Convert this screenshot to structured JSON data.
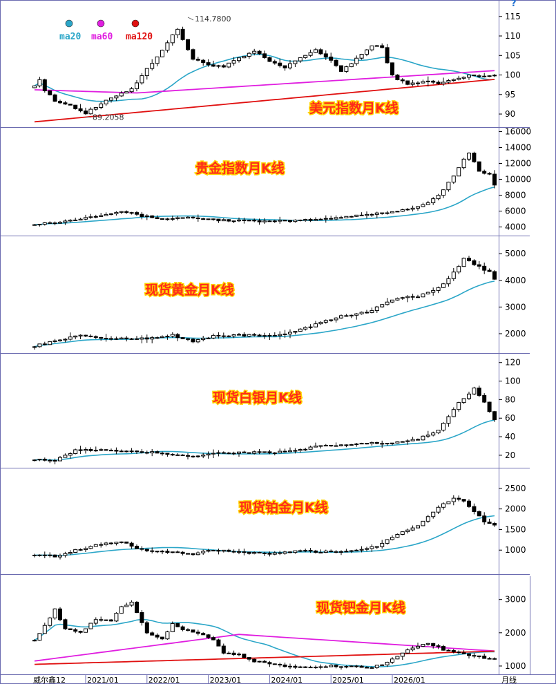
{
  "app": {
    "title": "威尔鑫12",
    "period_label": "月线",
    "help_icon": "?"
  },
  "legend": [
    {
      "name": "ma20",
      "color": "#2ba6c8"
    },
    {
      "name": "ma60",
      "color": "#e01fe0"
    },
    {
      "name": "ma120",
      "color": "#e01010"
    }
  ],
  "x_axis": {
    "labels": [
      "2021/01",
      "2022/01",
      "2023/01",
      "2024/01",
      "2025/01",
      "2026/01"
    ],
    "start": "2020/03",
    "end": "2026/03"
  },
  "chart_data": [
    {
      "type": "candlestick",
      "title": "美元指数月K线",
      "yticks": [
        90,
        95,
        100,
        105,
        110,
        115
      ],
      "ylim": [
        87,
        118.5
      ],
      "annotations": [
        {
          "text": "114.7800",
          "x": "2022/09",
          "y": 114.78
        },
        {
          "text": "89.2058",
          "x": "2021/01",
          "y": 89.2058
        }
      ],
      "ma": [
        "ma20",
        "ma60",
        "ma120"
      ],
      "series": {
        "anchors": [
          [
            0,
            97.5
          ],
          [
            1,
            98.9
          ],
          [
            2,
            96
          ],
          [
            4,
            93.3
          ],
          [
            6,
            92.8
          ],
          [
            10,
            90.2
          ],
          [
            13,
            92.5
          ],
          [
            16,
            94.8
          ],
          [
            19,
            96.5
          ],
          [
            22,
            101.5
          ],
          [
            25,
            106.5
          ],
          [
            28,
            111.8
          ],
          [
            31,
            104
          ],
          [
            34,
            102.7
          ],
          [
            37,
            102.1
          ],
          [
            40,
            104.2
          ],
          [
            43,
            106
          ],
          [
            46,
            103.5
          ],
          [
            49,
            101.8
          ],
          [
            52,
            104.5
          ],
          [
            55,
            106.5
          ],
          [
            58,
            103.5
          ],
          [
            60,
            101
          ],
          [
            63,
            104.2
          ],
          [
            66,
            107.5
          ],
          [
            68,
            107
          ],
          [
            70,
            99.8
          ],
          [
            73,
            97.5
          ],
          [
            76,
            98.5
          ],
          [
            79,
            97.8
          ],
          [
            82,
            98.8
          ],
          [
            85,
            99.8
          ]
        ]
      }
    },
    {
      "type": "candlestick",
      "title": "贵金指数月K线",
      "yticks": [
        4000,
        6000,
        8000,
        10000,
        12000,
        14000,
        16000
      ],
      "ylim": [
        3000,
        16300
      ],
      "ma": [
        "ma20"
      ],
      "series": {
        "anchors": [
          [
            0,
            4400
          ],
          [
            5,
            4600
          ],
          [
            10,
            5200
          ],
          [
            17,
            6000
          ],
          [
            21,
            5400
          ],
          [
            25,
            5000
          ],
          [
            30,
            5200
          ],
          [
            35,
            4900
          ],
          [
            45,
            4700
          ],
          [
            50,
            4750
          ],
          [
            57,
            5000
          ],
          [
            62,
            5400
          ],
          [
            67,
            5700
          ],
          [
            72,
            6100
          ],
          [
            77,
            7000
          ],
          [
            80,
            8600
          ],
          [
            82,
            10500
          ],
          [
            84,
            12500
          ],
          [
            85,
            13200
          ],
          [
            87,
            11000
          ],
          [
            89,
            10600
          ],
          [
            90,
            9300
          ]
        ]
      }
    },
    {
      "type": "candlestick",
      "title": "现货黄金月K线",
      "yticks": [
        2000,
        3000,
        4000,
        5000
      ],
      "ylim": [
        1300,
        5600
      ],
      "ma": [
        "ma20"
      ],
      "series": {
        "anchors": [
          [
            0,
            1550
          ],
          [
            5,
            1750
          ],
          [
            8,
            1950
          ],
          [
            12,
            1850
          ],
          [
            17,
            1800
          ],
          [
            23,
            1840
          ],
          [
            27,
            1950
          ],
          [
            31,
            1700
          ],
          [
            35,
            1920
          ],
          [
            40,
            1950
          ],
          [
            46,
            1900
          ],
          [
            50,
            2050
          ],
          [
            55,
            2350
          ],
          [
            60,
            2650
          ],
          [
            65,
            2800
          ],
          [
            70,
            3300
          ],
          [
            75,
            3400
          ],
          [
            79,
            3700
          ],
          [
            82,
            4300
          ],
          [
            84,
            4800
          ],
          [
            86,
            4600
          ],
          [
            89,
            4300
          ],
          [
            90,
            4080
          ]
        ]
      }
    },
    {
      "type": "candlestick",
      "title": "现货白银月K线",
      "yticks": [
        20,
        40,
        60,
        80,
        100,
        120
      ],
      "ylim": [
        8,
        128
      ],
      "ma": [
        "ma20"
      ],
      "series": {
        "anchors": [
          [
            0,
            16
          ],
          [
            4,
            14
          ],
          [
            8,
            25
          ],
          [
            12,
            26
          ],
          [
            17,
            24
          ],
          [
            23,
            23
          ],
          [
            27,
            21
          ],
          [
            31,
            19
          ],
          [
            35,
            22
          ],
          [
            40,
            23
          ],
          [
            46,
            23
          ],
          [
            50,
            24
          ],
          [
            55,
            29
          ],
          [
            60,
            31
          ],
          [
            65,
            33
          ],
          [
            70,
            33
          ],
          [
            75,
            37
          ],
          [
            79,
            47
          ],
          [
            82,
            70
          ],
          [
            84,
            82
          ],
          [
            86,
            92
          ],
          [
            88,
            78
          ],
          [
            90,
            58
          ]
        ]
      }
    },
    {
      "type": "candlestick",
      "title": "现货铂金月K线",
      "yticks": [
        1000,
        1500,
        2000,
        2500
      ],
      "ylim": [
        450,
        2950
      ],
      "ma": [
        "ma20"
      ],
      "series": {
        "anchors": [
          [
            0,
            900
          ],
          [
            4,
            850
          ],
          [
            8,
            1000
          ],
          [
            13,
            1150
          ],
          [
            17,
            1200
          ],
          [
            21,
            1000
          ],
          [
            27,
            950
          ],
          [
            31,
            900
          ],
          [
            35,
            1000
          ],
          [
            40,
            950
          ],
          [
            46,
            900
          ],
          [
            52,
            980
          ],
          [
            58,
            950
          ],
          [
            63,
            1000
          ],
          [
            67,
            1100
          ],
          [
            71,
            1400
          ],
          [
            75,
            1600
          ],
          [
            79,
            2050
          ],
          [
            82,
            2250
          ],
          [
            84,
            2200
          ],
          [
            86,
            1950
          ],
          [
            88,
            1700
          ],
          [
            90,
            1620
          ]
        ]
      }
    },
    {
      "type": "candlestick",
      "title": "现货钯金月K线",
      "yticks": [
        1000,
        2000,
        3000
      ],
      "ylim": [
        750,
        3700
      ],
      "ma": [
        "ma20",
        "ma60",
        "ma120"
      ],
      "series": {
        "anchors": [
          [
            0,
            1800
          ],
          [
            2,
            2200
          ],
          [
            4,
            2700
          ],
          [
            6,
            2100
          ],
          [
            9,
            2000
          ],
          [
            12,
            2400
          ],
          [
            15,
            2350
          ],
          [
            17,
            2800
          ],
          [
            19,
            2900
          ],
          [
            22,
            2000
          ],
          [
            25,
            1800
          ],
          [
            27,
            2300
          ],
          [
            29,
            2100
          ],
          [
            32,
            2000
          ],
          [
            35,
            1800
          ],
          [
            37,
            1400
          ],
          [
            40,
            1350
          ],
          [
            43,
            1150
          ],
          [
            46,
            1050
          ],
          [
            49,
            1000
          ],
          [
            53,
            950
          ],
          [
            57,
            1000
          ],
          [
            60,
            1000
          ],
          [
            63,
            1000
          ],
          [
            66,
            950
          ],
          [
            69,
            1100
          ],
          [
            72,
            1400
          ],
          [
            75,
            1600
          ],
          [
            77,
            1700
          ],
          [
            80,
            1500
          ],
          [
            83,
            1400
          ],
          [
            86,
            1300
          ],
          [
            88,
            1250
          ],
          [
            90,
            1200
          ]
        ]
      }
    }
  ]
}
